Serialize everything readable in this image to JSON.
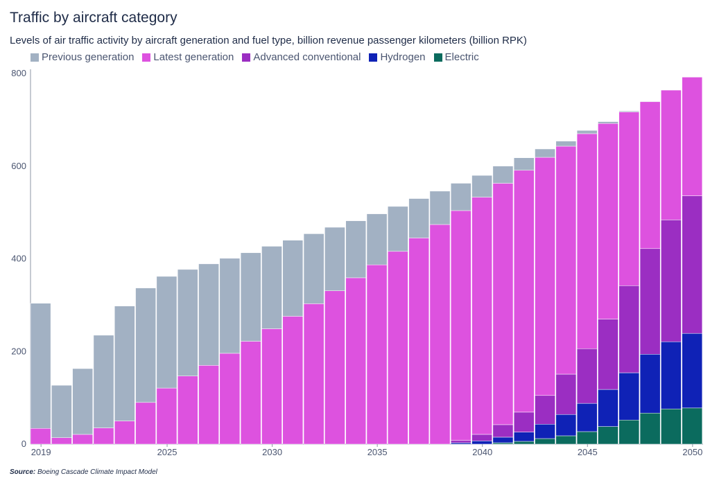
{
  "header": {
    "title": "Traffic by aircraft category",
    "subtitle": "Levels of air traffic activity by aircraft generation and fuel type, billion revenue passenger kilometers (billion RPK)"
  },
  "footer": {
    "source_label": "Source:",
    "source_text": " Boeing Cascade Climate Impact Model"
  },
  "chart_data": {
    "type": "bar",
    "stacked": true,
    "title": "Traffic by aircraft category",
    "subtitle": "Levels of air traffic activity by aircraft generation and fuel type, billion revenue passenger kilometers (billion RPK)",
    "xlabel": "",
    "ylabel": "",
    "ylim": [
      0,
      800
    ],
    "yticks": [
      0,
      200,
      400,
      600,
      800
    ],
    "xtick_labels": [
      "2019",
      "2025",
      "2030",
      "2035",
      "2040",
      "2045",
      "2050"
    ],
    "grid": false,
    "legend_position": "top-left",
    "categories": [
      2019,
      2020,
      2021,
      2022,
      2023,
      2024,
      2025,
      2026,
      2027,
      2028,
      2029,
      2030,
      2031,
      2032,
      2033,
      2034,
      2035,
      2036,
      2037,
      2038,
      2039,
      2040,
      2041,
      2042,
      2043,
      2044,
      2045,
      2046,
      2047,
      2048,
      2049,
      2050
    ],
    "series": [
      {
        "name": "Electric",
        "color": "#0b6b5e",
        "values": [
          0,
          0,
          0,
          0,
          0,
          0,
          0,
          0,
          0,
          0,
          0,
          0,
          0,
          0,
          0,
          0,
          0,
          0,
          0,
          0,
          0,
          0,
          3,
          6,
          12,
          18,
          27,
          38,
          52,
          67,
          76,
          78
        ]
      },
      {
        "name": "Hydrogen",
        "color": "#0f22b6",
        "values": [
          0,
          0,
          0,
          0,
          0,
          0,
          0,
          0,
          0,
          0,
          0,
          0,
          0,
          0,
          0,
          0,
          0,
          0,
          0,
          0,
          3,
          7,
          12,
          20,
          31,
          46,
          61,
          80,
          102,
          127,
          145,
          161
        ]
      },
      {
        "name": "Advanced conventional",
        "color": "#9b2ec2",
        "values": [
          0,
          0,
          0,
          0,
          0,
          0,
          0,
          0,
          0,
          0,
          0,
          0,
          0,
          0,
          0,
          0,
          0,
          0,
          0,
          0,
          5,
          14,
          27,
          43,
          62,
          87,
          118,
          152,
          188,
          228,
          263,
          297
        ]
      },
      {
        "name": "Latest generation",
        "color": "#dd52df",
        "values": [
          34,
          14,
          21,
          35,
          50,
          90,
          121,
          147,
          170,
          196,
          222,
          249,
          276,
          303,
          331,
          359,
          387,
          416,
          445,
          474,
          496,
          512,
          521,
          522,
          514,
          492,
          464,
          422,
          375,
          317,
          280,
          256
        ]
      },
      {
        "name": "Previous generation",
        "color": "#a2b1c3",
        "values": [
          270,
          113,
          142,
          200,
          248,
          247,
          241,
          230,
          219,
          205,
          191,
          178,
          164,
          151,
          137,
          123,
          110,
          97,
          85,
          72,
          59,
          47,
          37,
          27,
          18,
          11,
          7,
          4,
          2,
          1,
          0,
          0
        ]
      }
    ]
  }
}
